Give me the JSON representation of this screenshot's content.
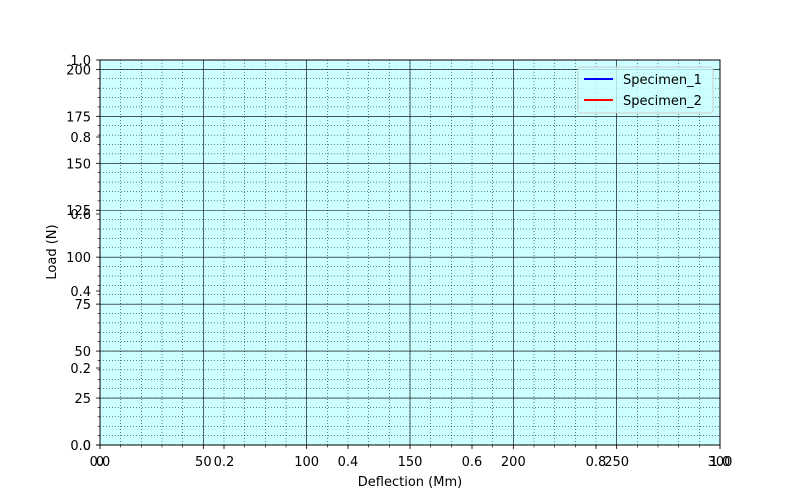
{
  "chart_data": {
    "type": "line",
    "title": "",
    "xlabel": "Deflection (Mm)",
    "ylabel": "Load (N)",
    "xlim": [
      0,
      300
    ],
    "ylim": [
      0,
      205
    ],
    "xticks": [
      0,
      50,
      100,
      150,
      200,
      250,
      300
    ],
    "yticks": [
      0,
      25,
      50,
      75,
      100,
      125,
      150,
      175,
      200
    ],
    "overlay_axis": {
      "xlim": [
        0,
        1
      ],
      "ylim": [
        0,
        1
      ],
      "xticks": [
        "0.0",
        "0.2",
        "0.4",
        "0.6",
        "0.8",
        "1.0"
      ],
      "yticks": [
        "0.0",
        "0.2",
        "0.4",
        "0.6",
        "0.8",
        "1.0"
      ]
    },
    "grid": true,
    "minor_grid": true,
    "background_color": "#ccffff",
    "legend_position": "upper right",
    "series": [
      {
        "name": "Specimen_1",
        "color": "#0000ff",
        "x": [],
        "y": []
      },
      {
        "name": "Specimen_2",
        "color": "#ff0000",
        "x": [],
        "y": []
      }
    ]
  }
}
